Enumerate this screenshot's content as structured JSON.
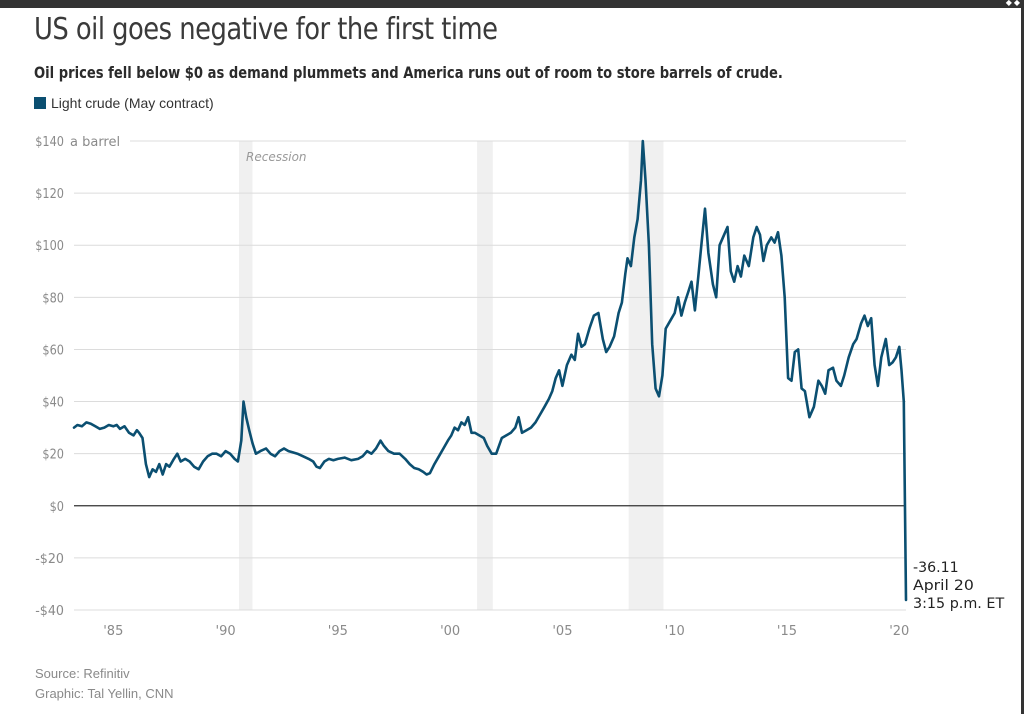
{
  "header": {
    "title": "US oil goes negative for the first time",
    "subtitle": "Oil prices fell below $0 as demand plummets and America runs out of room to store barrels of crude.",
    "legend_label": "Light crude (May contract)"
  },
  "footer": {
    "source": "Source: Refinitiv",
    "credit": "Graphic: Tal Yellin, CNN"
  },
  "colors": {
    "line": "#0b4f71",
    "recession_band": "#f0f0f0",
    "grid": "#dcdcdc",
    "zero_line": "#333333",
    "tick_text": "#8a8a8a"
  },
  "chart_data": {
    "type": "line",
    "title": "US oil goes negative for the first time",
    "subtitle": "Oil prices fell below $0 as demand plummets and America runs out of room to store barrels of crude.",
    "xlabel": "",
    "ylabel": "a barrel",
    "xlim": [
      1983.25,
      2020.3
    ],
    "ylim": [
      -40,
      140
    ],
    "grid": true,
    "legend_position": "top-left",
    "y_ticks": [
      {
        "value": 140,
        "label": "$140"
      },
      {
        "value": 120,
        "label": "$120"
      },
      {
        "value": 100,
        "label": "$100"
      },
      {
        "value": 80,
        "label": "$80"
      },
      {
        "value": 60,
        "label": "$60"
      },
      {
        "value": 40,
        "label": "$40"
      },
      {
        "value": 20,
        "label": "$20"
      },
      {
        "value": 0,
        "label": "$0"
      },
      {
        "value": -20,
        "label": "-$20"
      },
      {
        "value": -40,
        "label": "-$40"
      }
    ],
    "y_unit_label": "a barrel",
    "x_ticks": [
      {
        "value": 1985,
        "label": "'85"
      },
      {
        "value": 1990,
        "label": "'90"
      },
      {
        "value": 1995,
        "label": "'95"
      },
      {
        "value": 2000,
        "label": "'00"
      },
      {
        "value": 2005,
        "label": "'05"
      },
      {
        "value": 2010,
        "label": "'10"
      },
      {
        "value": 2015,
        "label": "'15"
      },
      {
        "value": 2020,
        "label": "'20"
      }
    ],
    "recessions": [
      {
        "start": 1990.6,
        "end": 1991.2,
        "label": "Recession"
      },
      {
        "start": 2001.2,
        "end": 2001.9,
        "label": ""
      },
      {
        "start": 2007.95,
        "end": 2009.5,
        "label": ""
      }
    ],
    "annotation": {
      "value_label": "-36.11",
      "date_label": "April 20",
      "time_label": "3:15 p.m. ET",
      "x": 2020.3,
      "y": -36.11
    },
    "series": [
      {
        "name": "Light crude (May contract)",
        "points": [
          [
            1983.25,
            30
          ],
          [
            1983.4,
            31
          ],
          [
            1983.6,
            30.5
          ],
          [
            1983.8,
            32
          ],
          [
            1984.0,
            31.5
          ],
          [
            1984.2,
            30.5
          ],
          [
            1984.4,
            29.5
          ],
          [
            1984.6,
            30
          ],
          [
            1984.8,
            31
          ],
          [
            1985.0,
            30.5
          ],
          [
            1985.15,
            31
          ],
          [
            1985.3,
            29.5
          ],
          [
            1985.5,
            30.5
          ],
          [
            1985.7,
            28
          ],
          [
            1985.9,
            27
          ],
          [
            1986.05,
            29
          ],
          [
            1986.15,
            28
          ],
          [
            1986.3,
            26
          ],
          [
            1986.45,
            16
          ],
          [
            1986.6,
            11
          ],
          [
            1986.75,
            14
          ],
          [
            1986.9,
            13
          ],
          [
            1987.05,
            16
          ],
          [
            1987.2,
            12
          ],
          [
            1987.35,
            16
          ],
          [
            1987.5,
            15
          ],
          [
            1987.7,
            18
          ],
          [
            1987.85,
            20
          ],
          [
            1988.0,
            17
          ],
          [
            1988.2,
            18
          ],
          [
            1988.4,
            17
          ],
          [
            1988.6,
            15
          ],
          [
            1988.8,
            14
          ],
          [
            1989.0,
            17
          ],
          [
            1989.2,
            19
          ],
          [
            1989.4,
            20
          ],
          [
            1989.6,
            20
          ],
          [
            1989.8,
            19
          ],
          [
            1990.0,
            21
          ],
          [
            1990.2,
            20
          ],
          [
            1990.4,
            18
          ],
          [
            1990.55,
            17
          ],
          [
            1990.7,
            25
          ],
          [
            1990.8,
            40
          ],
          [
            1990.92,
            34
          ],
          [
            1991.05,
            29
          ],
          [
            1991.2,
            24
          ],
          [
            1991.35,
            20
          ],
          [
            1991.55,
            21
          ],
          [
            1991.8,
            22
          ],
          [
            1992.0,
            20
          ],
          [
            1992.2,
            19
          ],
          [
            1992.4,
            21
          ],
          [
            1992.6,
            22
          ],
          [
            1992.8,
            21
          ],
          [
            1993.0,
            20.5
          ],
          [
            1993.2,
            20
          ],
          [
            1993.45,
            19
          ],
          [
            1993.7,
            18
          ],
          [
            1993.9,
            17
          ],
          [
            1994.05,
            15
          ],
          [
            1994.2,
            14.5
          ],
          [
            1994.4,
            17
          ],
          [
            1994.6,
            18
          ],
          [
            1994.8,
            17.5
          ],
          [
            1995.0,
            18
          ],
          [
            1995.3,
            18.5
          ],
          [
            1995.6,
            17.5
          ],
          [
            1995.9,
            18
          ],
          [
            1996.1,
            19
          ],
          [
            1996.3,
            21
          ],
          [
            1996.5,
            20
          ],
          [
            1996.7,
            22
          ],
          [
            1996.9,
            25
          ],
          [
            1997.05,
            23
          ],
          [
            1997.25,
            21
          ],
          [
            1997.5,
            20
          ],
          [
            1997.75,
            20
          ],
          [
            1998.0,
            18
          ],
          [
            1998.2,
            16
          ],
          [
            1998.4,
            14.5
          ],
          [
            1998.6,
            14
          ],
          [
            1998.8,
            13
          ],
          [
            1998.95,
            12
          ],
          [
            1999.1,
            12.5
          ],
          [
            1999.3,
            16
          ],
          [
            1999.5,
            19
          ],
          [
            1999.7,
            22
          ],
          [
            1999.9,
            25
          ],
          [
            2000.05,
            27
          ],
          [
            2000.2,
            30
          ],
          [
            2000.35,
            29
          ],
          [
            2000.5,
            32
          ],
          [
            2000.65,
            31
          ],
          [
            2000.8,
            34
          ],
          [
            2000.95,
            28
          ],
          [
            2001.1,
            28
          ],
          [
            2001.3,
            27
          ],
          [
            2001.5,
            26
          ],
          [
            2001.65,
            23
          ],
          [
            2001.85,
            20
          ],
          [
            2002.05,
            20
          ],
          [
            2002.3,
            26
          ],
          [
            2002.5,
            27
          ],
          [
            2002.7,
            28
          ],
          [
            2002.9,
            30
          ],
          [
            2003.05,
            34
          ],
          [
            2003.2,
            28
          ],
          [
            2003.4,
            29
          ],
          [
            2003.6,
            30
          ],
          [
            2003.8,
            32
          ],
          [
            2004.0,
            35
          ],
          [
            2004.2,
            38
          ],
          [
            2004.4,
            41
          ],
          [
            2004.55,
            44
          ],
          [
            2004.7,
            49
          ],
          [
            2004.85,
            52
          ],
          [
            2005.0,
            46
          ],
          [
            2005.2,
            54
          ],
          [
            2005.4,
            58
          ],
          [
            2005.55,
            56
          ],
          [
            2005.7,
            66
          ],
          [
            2005.85,
            61
          ],
          [
            2006.0,
            62
          ],
          [
            2006.2,
            68
          ],
          [
            2006.4,
            73
          ],
          [
            2006.6,
            74
          ],
          [
            2006.8,
            64
          ],
          [
            2006.95,
            59
          ],
          [
            2007.1,
            61
          ],
          [
            2007.3,
            65
          ],
          [
            2007.5,
            74
          ],
          [
            2007.65,
            78
          ],
          [
            2007.8,
            89
          ],
          [
            2007.9,
            95
          ],
          [
            2008.05,
            92
          ],
          [
            2008.2,
            103
          ],
          [
            2008.35,
            110
          ],
          [
            2008.5,
            125
          ],
          [
            2008.58,
            140
          ],
          [
            2008.7,
            125
          ],
          [
            2008.85,
            100
          ],
          [
            2009.0,
            62
          ],
          [
            2009.15,
            45
          ],
          [
            2009.3,
            42
          ],
          [
            2009.45,
            50
          ],
          [
            2009.6,
            68
          ],
          [
            2009.8,
            71
          ],
          [
            2010.0,
            74
          ],
          [
            2010.15,
            80
          ],
          [
            2010.3,
            73
          ],
          [
            2010.45,
            78
          ],
          [
            2010.6,
            82
          ],
          [
            2010.75,
            86
          ],
          [
            2010.9,
            75
          ],
          [
            2011.05,
            88
          ],
          [
            2011.2,
            101
          ],
          [
            2011.35,
            114
          ],
          [
            2011.5,
            97
          ],
          [
            2011.7,
            85
          ],
          [
            2011.85,
            80
          ],
          [
            2012.0,
            100
          ],
          [
            2012.2,
            104
          ],
          [
            2012.35,
            107
          ],
          [
            2012.5,
            90
          ],
          [
            2012.65,
            86
          ],
          [
            2012.8,
            92
          ],
          [
            2012.95,
            88
          ],
          [
            2013.1,
            96
          ],
          [
            2013.3,
            92
          ],
          [
            2013.5,
            103
          ],
          [
            2013.65,
            107
          ],
          [
            2013.8,
            104
          ],
          [
            2013.95,
            94
          ],
          [
            2014.1,
            100
          ],
          [
            2014.3,
            103
          ],
          [
            2014.45,
            101
          ],
          [
            2014.6,
            105
          ],
          [
            2014.75,
            96
          ],
          [
            2014.9,
            80
          ],
          [
            2015.05,
            49
          ],
          [
            2015.2,
            48
          ],
          [
            2015.35,
            59
          ],
          [
            2015.5,
            60
          ],
          [
            2015.65,
            45
          ],
          [
            2015.8,
            44
          ],
          [
            2016.0,
            34
          ],
          [
            2016.2,
            38
          ],
          [
            2016.4,
            48
          ],
          [
            2016.55,
            46
          ],
          [
            2016.7,
            43
          ],
          [
            2016.85,
            52
          ],
          [
            2017.05,
            53
          ],
          [
            2017.2,
            48
          ],
          [
            2017.4,
            46
          ],
          [
            2017.55,
            50
          ],
          [
            2017.75,
            57
          ],
          [
            2017.95,
            62
          ],
          [
            2018.1,
            64
          ],
          [
            2018.3,
            70
          ],
          [
            2018.45,
            73
          ],
          [
            2018.6,
            69
          ],
          [
            2018.75,
            72
          ],
          [
            2018.9,
            54
          ],
          [
            2019.05,
            46
          ],
          [
            2019.2,
            57
          ],
          [
            2019.4,
            64
          ],
          [
            2019.55,
            54
          ],
          [
            2019.7,
            55
          ],
          [
            2019.85,
            57
          ],
          [
            2020.0,
            61
          ],
          [
            2020.1,
            52
          ],
          [
            2020.2,
            40
          ],
          [
            2020.3,
            -36.11
          ]
        ]
      }
    ]
  }
}
